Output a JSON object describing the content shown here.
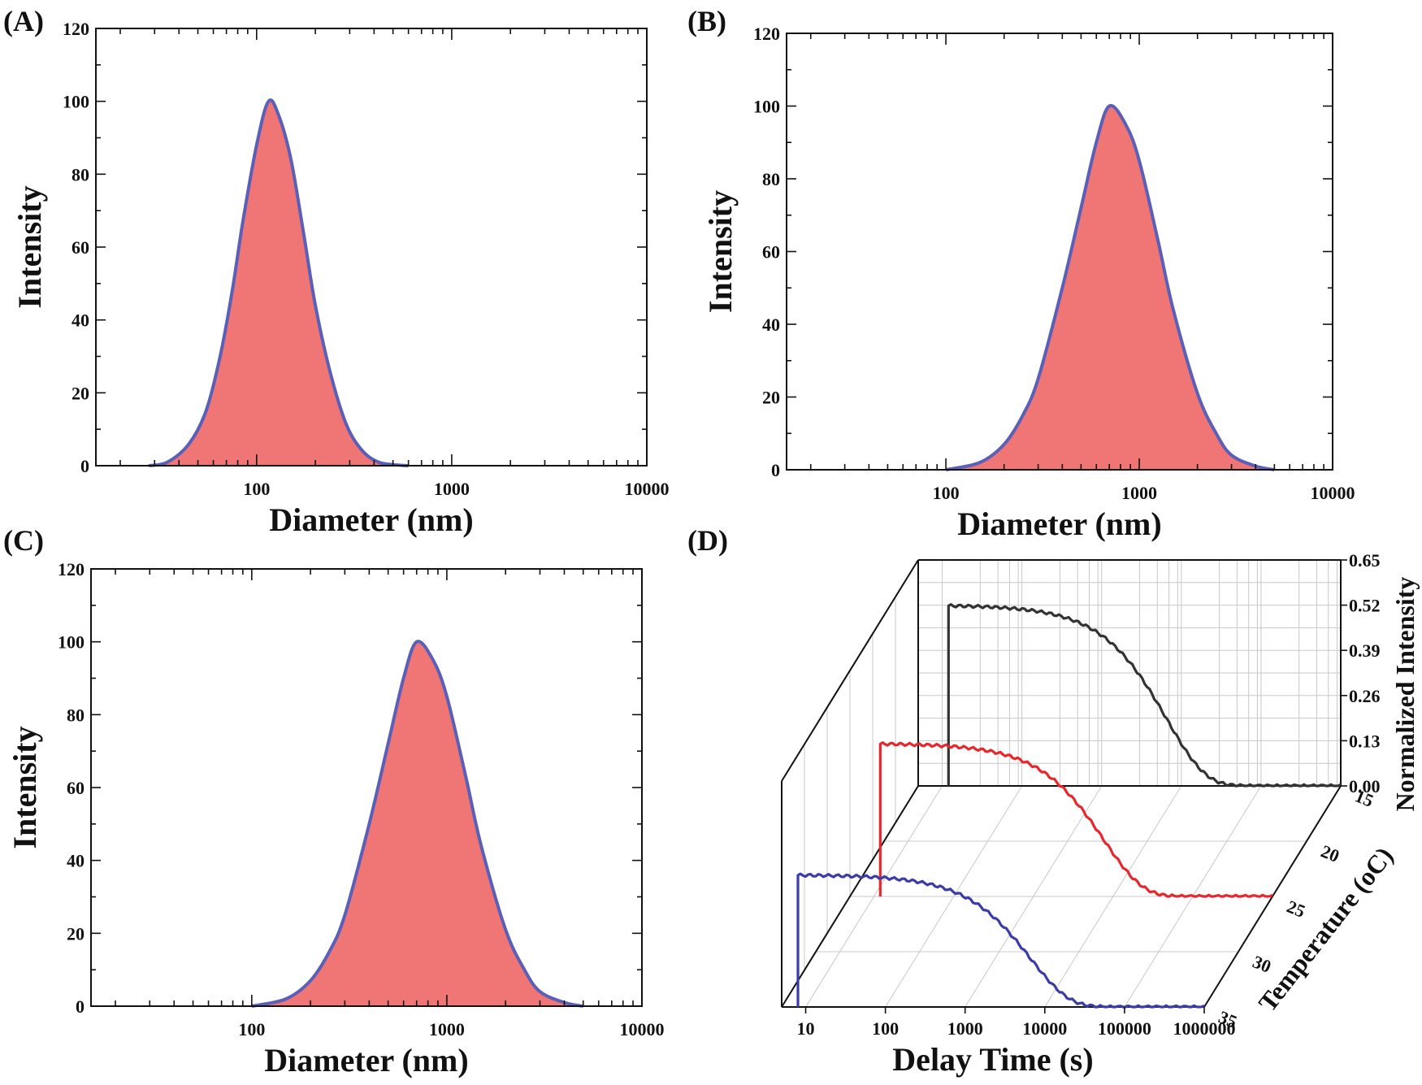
{
  "chart_data": [
    {
      "panel": "(A)",
      "type": "area",
      "xscale": "log",
      "xlabel": "Diameter (nm)",
      "ylabel": "Intensity",
      "xlim": [
        15,
        10000
      ],
      "ylim": [
        0,
        120
      ],
      "xticks": [
        "100",
        "1000",
        "10000"
      ],
      "yticks": [
        "0",
        "20",
        "40",
        "60",
        "80",
        "100",
        "120"
      ],
      "peak_diameter_nm": 115,
      "peak_intensity": 100,
      "x": [
        28,
        35,
        45,
        55,
        65,
        75,
        85,
        100,
        115,
        130,
        150,
        175,
        200,
        240,
        290,
        350,
        420,
        500,
        600
      ],
      "y": [
        0,
        1,
        6,
        15,
        30,
        48,
        67,
        88,
        100,
        96,
        84,
        63,
        44,
        25,
        11,
        4,
        1,
        0.3,
        0
      ],
      "fill_color": "#f07575",
      "line_color": "#5a5fb8"
    },
    {
      "panel": "(B)",
      "type": "area",
      "xscale": "log",
      "xlabel": "Diameter (nm)",
      "ylabel": "Intensity",
      "xlim": [
        15,
        10000
      ],
      "ylim": [
        0,
        120
      ],
      "xticks": [
        "100",
        "1000",
        "10000"
      ],
      "yticks": [
        "0",
        "20",
        "40",
        "60",
        "80",
        "100",
        "120"
      ],
      "peak_diameter_nm": 700,
      "peak_intensity": 100,
      "x": [
        100,
        150,
        200,
        250,
        300,
        400,
        500,
        600,
        700,
        850,
        1000,
        1250,
        1500,
        2000,
        2500,
        3000,
        4000,
        5000
      ],
      "y": [
        0,
        2,
        7,
        15,
        25,
        50,
        72,
        90,
        100,
        95,
        85,
        63,
        44,
        21,
        10,
        4,
        1,
        0
      ],
      "fill_color": "#f07575",
      "line_color": "#5a5fb8"
    },
    {
      "panel": "(C)",
      "type": "area",
      "xscale": "log",
      "xlabel": "Diameter (nm)",
      "ylabel": "Intensity",
      "xlim": [
        15,
        10000
      ],
      "ylim": [
        0,
        120
      ],
      "xticks": [
        "100",
        "1000",
        "10000"
      ],
      "yticks": [
        "0",
        "20",
        "40",
        "60",
        "80",
        "100",
        "120"
      ],
      "peak_diameter_nm": 700,
      "peak_intensity": 100,
      "x": [
        100,
        150,
        200,
        250,
        300,
        400,
        500,
        600,
        700,
        850,
        1000,
        1250,
        1500,
        2000,
        2500,
        3000,
        4000,
        5000
      ],
      "y": [
        0,
        2,
        7,
        15,
        25,
        50,
        72,
        90,
        100,
        95,
        85,
        63,
        44,
        21,
        10,
        4,
        1,
        0
      ],
      "fill_color": "#f07575",
      "line_color": "#5a5fb8"
    },
    {
      "panel": "(D)",
      "type": "line",
      "projection": "3d",
      "xscale": "log",
      "xlabel": "Delay Time (s)",
      "ylabel": "Temperature (oC)",
      "zlabel": "Normalized Intensity",
      "xlim": [
        5,
        1000000
      ],
      "zlim": [
        0,
        0.65
      ],
      "xticks": [
        "10",
        "100",
        "1000",
        "10000",
        "100000",
        "1000000"
      ],
      "temperature_ticks": [
        "15",
        "20",
        "25",
        "30",
        "35"
      ],
      "zticks": [
        "0.00",
        "0.13",
        "0.26",
        "0.39",
        "0.52",
        "0.65"
      ],
      "series": [
        {
          "name": "15 °C",
          "temperature": 15,
          "color": "#333333",
          "plateau": 0.52,
          "t_half": 3000,
          "t_start": 12
        },
        {
          "name": "25 °C",
          "temperature": 25,
          "color": "#e8262b",
          "plateau": 0.44,
          "t_half": 3500,
          "t_start": 12
        },
        {
          "name": "35 °C",
          "temperature": 35,
          "color": "#3c3ca8",
          "plateau": 0.38,
          "t_half": 3000,
          "t_start": 8
        }
      ]
    }
  ]
}
